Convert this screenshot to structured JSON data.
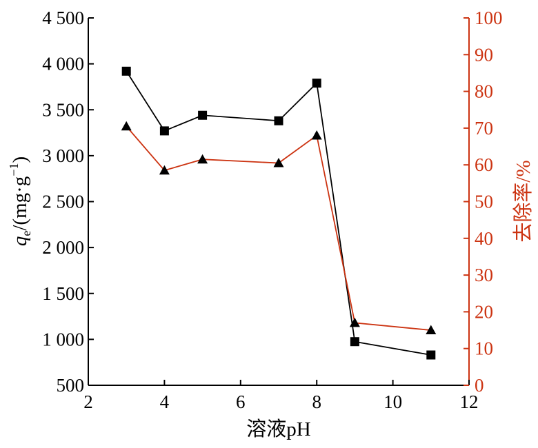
{
  "chart_data": {
    "type": "line",
    "x": [
      3,
      4,
      5,
      7,
      8,
      9,
      11
    ],
    "xlabel": "溶液pH",
    "xlim": [
      2,
      12
    ],
    "xticks": [
      2,
      4,
      6,
      8,
      10,
      12
    ],
    "ylabel_left": {
      "q": "q",
      "sub": "e",
      "rest": "/(mg·g",
      "sup": "−1",
      "close": ")"
    },
    "ylim_left": [
      500,
      4500
    ],
    "yticks_left": [
      500,
      1000,
      1500,
      2000,
      2500,
      3000,
      3500,
      4000,
      4500
    ],
    "ytick_labels_left": [
      "500",
      "1 000",
      "1 500",
      "2 000",
      "2 500",
      "3 000",
      "3 500",
      "4 000",
      "4 500"
    ],
    "ylabel_right": "去除率/%",
    "ylim_right": [
      0,
      100
    ],
    "yticks_right": [
      0,
      10,
      20,
      30,
      40,
      50,
      60,
      70,
      80,
      90,
      100
    ],
    "series": [
      {
        "axis": "left",
        "marker": "square",
        "color": "#000000",
        "values": [
          3920,
          3270,
          3440,
          3380,
          3790,
          975,
          830
        ]
      },
      {
        "axis": "right",
        "marker": "triangle",
        "color": "#cc3311",
        "values": [
          70.5,
          58.5,
          61.5,
          60.5,
          68,
          17,
          15
        ]
      }
    ],
    "colors": {
      "left_axis": "#000000",
      "right_axis": "#cc3311"
    }
  }
}
